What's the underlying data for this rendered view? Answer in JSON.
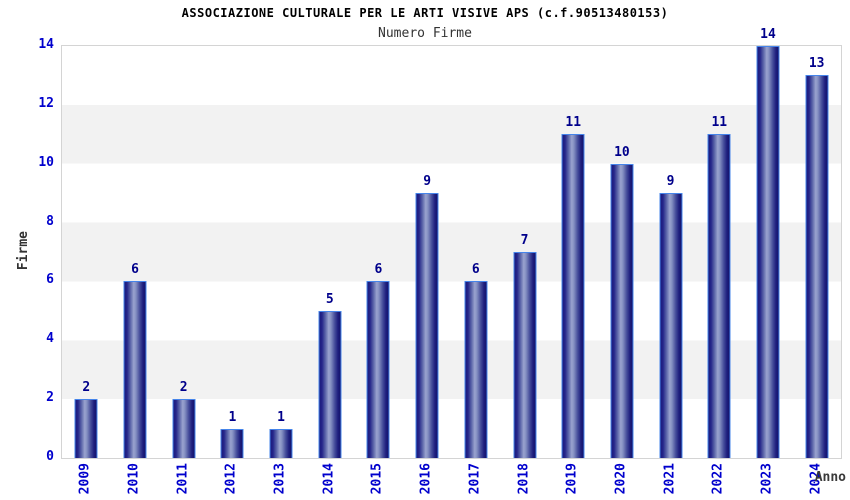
{
  "chart_data": {
    "type": "bar",
    "title": "ASSOCIAZIONE CULTURALE PER LE ARTI VISIVE APS (c.f.90513480153)",
    "subtitle": "Numero Firme",
    "xlabel": "Anno",
    "ylabel": "Firme",
    "categories": [
      "2009",
      "2010",
      "2011",
      "2012",
      "2013",
      "2014",
      "2015",
      "2016",
      "2017",
      "2018",
      "2019",
      "2020",
      "2021",
      "2022",
      "2023",
      "2024"
    ],
    "values": [
      2,
      6,
      2,
      1,
      1,
      5,
      6,
      9,
      6,
      7,
      11,
      10,
      9,
      11,
      14,
      13
    ],
    "ylim": [
      0,
      14
    ],
    "yticks": [
      0,
      2,
      4,
      6,
      8,
      10,
      12,
      14
    ],
    "grid": "horizontal alternating bands every 2 units",
    "legend": "none",
    "colors": {
      "bar_dark": "#1b1b7c",
      "bar_light": "#9aa3cf",
      "bar_border": "#4584ea",
      "value_label": "#00008b",
      "tick_label": "#0000cd",
      "band_gray": "#f2f2f2",
      "band_white": "#ffffff",
      "plot_border": "#d4d4d4",
      "title_color": "#000000",
      "subtitle_color": "#333333",
      "axis_title_color": "#3a3a3a"
    }
  }
}
